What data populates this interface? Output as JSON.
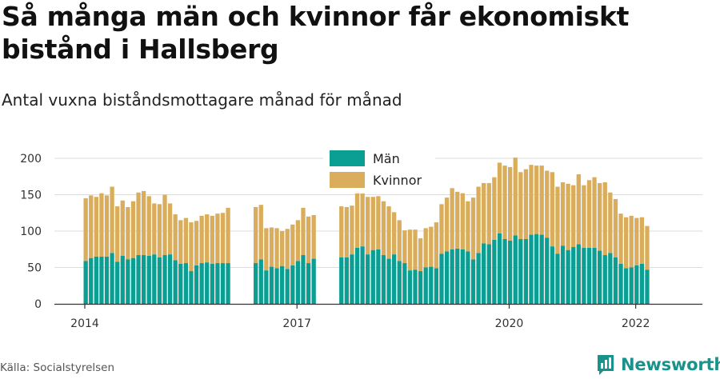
{
  "title": "Så många män och kvinnor får ekonomiskt bistånd i Hallsberg",
  "subtitle": "Antal vuxna biståndsmottagare månad för månad",
  "source": "Källa: Socialstyrelsen",
  "brand": "Newsworthy",
  "colors": {
    "men": "#0b9e93",
    "women": "#d9ad5b",
    "grid": "#dddddd",
    "axis": "#333333",
    "brand": "#19938a"
  },
  "chart_data": {
    "type": "bar",
    "stacked": true,
    "xlabel": "",
    "ylabel": "",
    "ylim": [
      0,
      200
    ],
    "yticks": [
      0,
      50,
      100,
      150,
      200
    ],
    "xtick_labels": [
      "2014",
      "2017",
      "2020",
      "2022"
    ],
    "legend": {
      "placement": "top-center",
      "entries": [
        "Män",
        "Kvinnor"
      ]
    },
    "grid": true,
    "gaps_after": [
      27,
      39
    ],
    "series": [
      {
        "name": "Män",
        "values": [
          59,
          63,
          65,
          65,
          65,
          70,
          58,
          66,
          61,
          63,
          67,
          67,
          66,
          68,
          64,
          67,
          68,
          60,
          55,
          56,
          45,
          53,
          56,
          57,
          55,
          56,
          56,
          56,
          56,
          61,
          46,
          51,
          49,
          52,
          48,
          53,
          59,
          67,
          56,
          62,
          64,
          64,
          68,
          77,
          79,
          68,
          74,
          75,
          67,
          62,
          68,
          59,
          56,
          46,
          47,
          45,
          50,
          51,
          49,
          69,
          72,
          75,
          76,
          75,
          72,
          61,
          70,
          83,
          82,
          88,
          97,
          89,
          87,
          94,
          89,
          89,
          95,
          96,
          95,
          91,
          79,
          69,
          80,
          74,
          78,
          82,
          77,
          77,
          77,
          73,
          67,
          70,
          64,
          55,
          49,
          50,
          53,
          55,
          47
        ]
      },
      {
        "name": "Kvinnor",
        "values": [
          86,
          86,
          82,
          87,
          84,
          91,
          76,
          76,
          72,
          78,
          86,
          88,
          82,
          70,
          73,
          83,
          70,
          63,
          60,
          62,
          67,
          61,
          65,
          66,
          66,
          68,
          69,
          76,
          77,
          75,
          58,
          54,
          55,
          48,
          55,
          56,
          56,
          65,
          64,
          60,
          70,
          69,
          67,
          78,
          73,
          79,
          73,
          73,
          74,
          72,
          58,
          56,
          45,
          56,
          55,
          45,
          54,
          55,
          63,
          68,
          74,
          84,
          78,
          77,
          69,
          85,
          91,
          83,
          84,
          86,
          97,
          101,
          101,
          107,
          92,
          96,
          96,
          94,
          95,
          92,
          102,
          92,
          87,
          91,
          85,
          96,
          86,
          93,
          97,
          93,
          100,
          83,
          80,
          69,
          70,
          71,
          65,
          64,
          60
        ]
      }
    ]
  }
}
